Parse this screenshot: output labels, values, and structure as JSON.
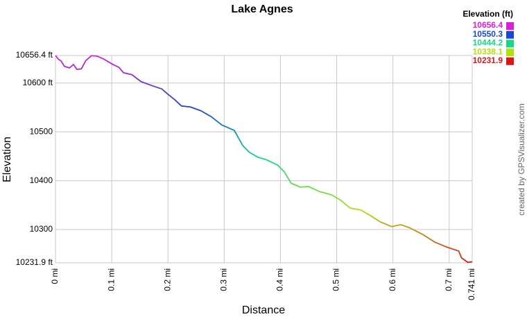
{
  "chart_data": {
    "type": "line",
    "title": "Lake Agnes",
    "x_label": "Distance",
    "y_label": "Elevation",
    "credit": "created by GPSVisualizer.com",
    "xlim": [
      0,
      0.741
    ],
    "ylim": [
      10231.9,
      10656.4
    ],
    "xticks": [
      {
        "value": 0,
        "label": "0 mi"
      },
      {
        "value": 0.1,
        "label": "0.1 mi"
      },
      {
        "value": 0.2,
        "label": "0.2 mi"
      },
      {
        "value": 0.3,
        "label": "0.3 mi"
      },
      {
        "value": 0.4,
        "label": "0.4 mi"
      },
      {
        "value": 0.5,
        "label": "0.5 mi"
      },
      {
        "value": 0.6,
        "label": "0.6 mi"
      },
      {
        "value": 0.7,
        "label": "0.7 mi"
      },
      {
        "value": 0.741,
        "label": "0.741 mi"
      }
    ],
    "yticks": [
      {
        "value": 10656.4,
        "label": "10656.4 ft"
      },
      {
        "value": 10600,
        "label": "10600 ft"
      },
      {
        "value": 10500,
        "label": "10500"
      },
      {
        "value": 10400,
        "label": "10400"
      },
      {
        "value": 10300,
        "label": "10300"
      },
      {
        "value": 10231.9,
        "label": "10231.9 ft"
      }
    ],
    "grid": true,
    "color_scale": {
      "title": "Elevation (ft)",
      "stops": [
        {
          "value": 10656.4,
          "color": "#d820d8"
        },
        {
          "value": 10550.3,
          "color": "#1848d0"
        },
        {
          "value": 10444.2,
          "color": "#18d888"
        },
        {
          "value": 10338.1,
          "color": "#b0e010"
        },
        {
          "value": 10231.9,
          "color": "#d81818"
        }
      ]
    },
    "x": [
      0,
      0.005,
      0.01,
      0.016,
      0.025,
      0.032,
      0.038,
      0.046,
      0.054,
      0.064,
      0.074,
      0.086,
      0.102,
      0.113,
      0.121,
      0.136,
      0.152,
      0.173,
      0.189,
      0.2,
      0.212,
      0.224,
      0.24,
      0.259,
      0.277,
      0.296,
      0.318,
      0.333,
      0.345,
      0.36,
      0.375,
      0.395,
      0.407,
      0.419,
      0.435,
      0.45,
      0.469,
      0.491,
      0.506,
      0.524,
      0.543,
      0.561,
      0.577,
      0.598,
      0.614,
      0.629,
      0.653,
      0.675,
      0.696,
      0.717,
      0.722,
      0.733,
      0.741
    ],
    "values": [
      10656.4,
      10649,
      10645,
      10634,
      10631,
      10638,
      10628,
      10629,
      10646,
      10656,
      10655,
      10649,
      10638,
      10632,
      10621,
      10617,
      10603,
      10594,
      10588,
      10577,
      10566,
      10553,
      10551,
      10543,
      10531,
      10514,
      10503,
      10472,
      10458,
      10448,
      10443,
      10432,
      10418,
      10395,
      10387,
      10388,
      10378,
      10371,
      10361,
      10344,
      10340,
      10328,
      10316,
      10306,
      10310,
      10304,
      10290,
      10274,
      10264,
      10256,
      10242,
      10233,
      10234
    ]
  }
}
